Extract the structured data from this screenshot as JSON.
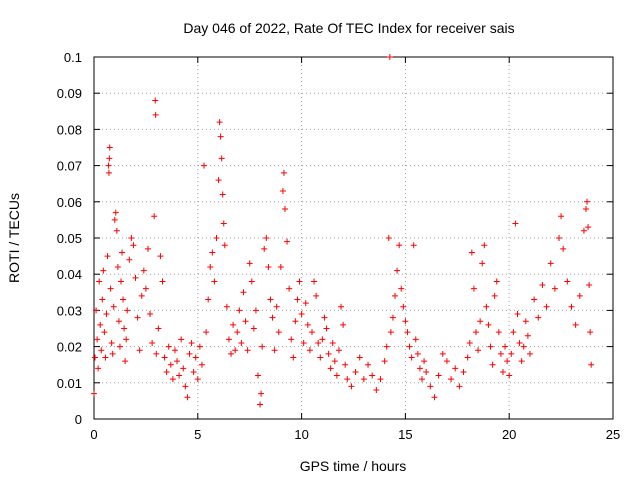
{
  "chart_data": {
    "type": "scatter",
    "title": "Day 046 of 2022, Rate Of TEC Index for receiver sais",
    "xlabel": "GPS time / hours",
    "ylabel": "ROTI / TECUs",
    "xlim": [
      0,
      25
    ],
    "ylim": [
      0,
      0.1
    ],
    "x_ticks": [
      "0",
      "5",
      "10",
      "15",
      "20",
      "25"
    ],
    "y_ticks": [
      "0",
      "0.01",
      "0.02",
      "0.03",
      "0.04",
      "0.05",
      "0.06",
      "0.07",
      "0.08",
      "0.09",
      "0.1"
    ],
    "x_tick_values": [
      0,
      5,
      10,
      15,
      20,
      25
    ],
    "y_tick_values": [
      0,
      0.01,
      0.02,
      0.03,
      0.04,
      0.05,
      0.06,
      0.07,
      0.08,
      0.09,
      0.1
    ],
    "grid": true,
    "marker": "+",
    "marker_color": "#ff0000",
    "series": [
      {
        "points": [
          [
            0.0,
            0.007
          ],
          [
            0.05,
            0.017
          ],
          [
            0.1,
            0.03
          ],
          [
            0.15,
            0.022
          ],
          [
            0.2,
            0.014
          ],
          [
            0.25,
            0.038
          ],
          [
            0.3,
            0.026
          ],
          [
            0.35,
            0.019
          ],
          [
            0.4,
            0.033
          ],
          [
            0.45,
            0.041
          ],
          [
            0.5,
            0.024
          ],
          [
            0.55,
            0.017
          ],
          [
            0.6,
            0.029
          ],
          [
            0.65,
            0.045
          ],
          [
            0.7,
            0.07
          ],
          [
            0.72,
            0.068
          ],
          [
            0.74,
            0.072
          ],
          [
            0.76,
            0.075
          ],
          [
            0.8,
            0.036
          ],
          [
            0.85,
            0.021
          ],
          [
            0.9,
            0.018
          ],
          [
            0.95,
            0.031
          ],
          [
            1.0,
            0.055
          ],
          [
            1.05,
            0.057
          ],
          [
            1.1,
            0.052
          ],
          [
            1.15,
            0.042
          ],
          [
            1.2,
            0.027
          ],
          [
            1.25,
            0.02
          ],
          [
            1.3,
            0.038
          ],
          [
            1.35,
            0.046
          ],
          [
            1.4,
            0.033
          ],
          [
            1.45,
            0.025
          ],
          [
            1.5,
            0.016
          ],
          [
            1.55,
            0.022
          ],
          [
            1.6,
            0.03
          ],
          [
            1.7,
            0.044
          ],
          [
            1.8,
            0.05
          ],
          [
            1.9,
            0.048
          ],
          [
            2.0,
            0.039
          ],
          [
            2.1,
            0.028
          ],
          [
            2.2,
            0.019
          ],
          [
            2.3,
            0.034
          ],
          [
            2.4,
            0.041
          ],
          [
            2.5,
            0.036
          ],
          [
            2.6,
            0.047
          ],
          [
            2.7,
            0.029
          ],
          [
            2.8,
            0.021
          ],
          [
            2.9,
            0.056
          ],
          [
            2.95,
            0.088
          ],
          [
            2.97,
            0.084
          ],
          [
            3.0,
            0.018
          ],
          [
            3.1,
            0.025
          ],
          [
            3.2,
            0.045
          ],
          [
            3.3,
            0.038
          ],
          [
            3.4,
            0.017
          ],
          [
            3.5,
            0.013
          ],
          [
            3.6,
            0.02
          ],
          [
            3.7,
            0.015
          ],
          [
            3.8,
            0.011
          ],
          [
            3.9,
            0.019
          ],
          [
            4.0,
            0.016
          ],
          [
            4.1,
            0.012
          ],
          [
            4.2,
            0.022
          ],
          [
            4.3,
            0.014
          ],
          [
            4.4,
            0.009
          ],
          [
            4.5,
            0.006
          ],
          [
            4.6,
            0.018
          ],
          [
            4.7,
            0.021
          ],
          [
            4.8,
            0.013
          ],
          [
            4.9,
            0.017
          ],
          [
            5.0,
            0.011
          ],
          [
            5.1,
            0.02
          ],
          [
            5.2,
            0.015
          ],
          [
            5.3,
            0.07
          ],
          [
            5.4,
            0.024
          ],
          [
            5.5,
            0.033
          ],
          [
            5.6,
            0.042
          ],
          [
            5.7,
            0.046
          ],
          [
            5.8,
            0.038
          ],
          [
            5.9,
            0.05
          ],
          [
            6.0,
            0.066
          ],
          [
            6.05,
            0.082
          ],
          [
            6.1,
            0.078
          ],
          [
            6.15,
            0.072
          ],
          [
            6.2,
            0.062
          ],
          [
            6.25,
            0.054
          ],
          [
            6.3,
            0.048
          ],
          [
            6.4,
            0.031
          ],
          [
            6.5,
            0.022
          ],
          [
            6.6,
            0.018
          ],
          [
            6.7,
            0.026
          ],
          [
            6.8,
            0.019
          ],
          [
            6.9,
            0.024
          ],
          [
            7.0,
            0.03
          ],
          [
            7.1,
            0.021
          ],
          [
            7.2,
            0.035
          ],
          [
            7.3,
            0.027
          ],
          [
            7.4,
            0.019
          ],
          [
            7.5,
            0.043
          ],
          [
            7.6,
            0.038
          ],
          [
            7.7,
            0.025
          ],
          [
            7.8,
            0.03
          ],
          [
            7.9,
            0.012
          ],
          [
            8.0,
            0.004
          ],
          [
            8.05,
            0.007
          ],
          [
            8.1,
            0.02
          ],
          [
            8.2,
            0.047
          ],
          [
            8.3,
            0.05
          ],
          [
            8.4,
            0.042
          ],
          [
            8.5,
            0.033
          ],
          [
            8.6,
            0.028
          ],
          [
            8.7,
            0.019
          ],
          [
            8.8,
            0.031
          ],
          [
            8.9,
            0.024
          ],
          [
            9.0,
            0.042
          ],
          [
            9.1,
            0.063
          ],
          [
            9.15,
            0.068
          ],
          [
            9.2,
            0.058
          ],
          [
            9.3,
            0.049
          ],
          [
            9.4,
            0.036
          ],
          [
            9.5,
            0.022
          ],
          [
            9.6,
            0.017
          ],
          [
            9.7,
            0.027
          ],
          [
            9.8,
            0.033
          ],
          [
            9.9,
            0.038
          ],
          [
            10.0,
            0.029
          ],
          [
            10.1,
            0.021
          ],
          [
            10.2,
            0.032
          ],
          [
            10.3,
            0.026
          ],
          [
            10.4,
            0.019
          ],
          [
            10.5,
            0.024
          ],
          [
            10.6,
            0.038
          ],
          [
            10.7,
            0.034
          ],
          [
            10.8,
            0.021
          ],
          [
            10.9,
            0.017
          ],
          [
            11.0,
            0.022
          ],
          [
            11.1,
            0.028
          ],
          [
            11.2,
            0.025
          ],
          [
            11.3,
            0.018
          ],
          [
            11.4,
            0.014
          ],
          [
            11.5,
            0.021
          ],
          [
            11.6,
            0.016
          ],
          [
            11.7,
            0.012
          ],
          [
            11.8,
            0.019
          ],
          [
            11.9,
            0.031
          ],
          [
            12.0,
            0.026
          ],
          [
            12.1,
            0.015
          ],
          [
            12.2,
            0.011
          ],
          [
            12.4,
            0.009
          ],
          [
            12.6,
            0.013
          ],
          [
            12.8,
            0.017
          ],
          [
            13.0,
            0.011
          ],
          [
            13.2,
            0.015
          ],
          [
            13.4,
            0.012
          ],
          [
            13.6,
            0.008
          ],
          [
            13.8,
            0.011
          ],
          [
            14.0,
            0.016
          ],
          [
            14.1,
            0.02
          ],
          [
            14.2,
            0.05
          ],
          [
            14.25,
            0.1
          ],
          [
            14.3,
            0.024
          ],
          [
            14.4,
            0.028
          ],
          [
            14.5,
            0.034
          ],
          [
            14.6,
            0.041
          ],
          [
            14.7,
            0.048
          ],
          [
            14.8,
            0.036
          ],
          [
            14.9,
            0.031
          ],
          [
            15.0,
            0.027
          ],
          [
            15.1,
            0.024
          ],
          [
            15.2,
            0.02
          ],
          [
            15.3,
            0.017
          ],
          [
            15.4,
            0.048
          ],
          [
            15.5,
            0.022
          ],
          [
            15.6,
            0.018
          ],
          [
            15.7,
            0.014
          ],
          [
            15.8,
            0.011
          ],
          [
            15.9,
            0.016
          ],
          [
            16.0,
            0.013
          ],
          [
            16.2,
            0.009
          ],
          [
            16.4,
            0.006
          ],
          [
            16.6,
            0.012
          ],
          [
            16.8,
            0.018
          ],
          [
            17.0,
            0.016
          ],
          [
            17.2,
            0.011
          ],
          [
            17.4,
            0.014
          ],
          [
            17.6,
            0.009
          ],
          [
            17.8,
            0.013
          ],
          [
            18.0,
            0.017
          ],
          [
            18.1,
            0.021
          ],
          [
            18.2,
            0.046
          ],
          [
            18.3,
            0.036
          ],
          [
            18.4,
            0.024
          ],
          [
            18.5,
            0.019
          ],
          [
            18.6,
            0.027
          ],
          [
            18.7,
            0.043
          ],
          [
            18.8,
            0.048
          ],
          [
            18.9,
            0.031
          ],
          [
            19.0,
            0.026
          ],
          [
            19.1,
            0.02
          ],
          [
            19.2,
            0.015
          ],
          [
            19.3,
            0.034
          ],
          [
            19.4,
            0.038
          ],
          [
            19.5,
            0.024
          ],
          [
            19.6,
            0.018
          ],
          [
            19.7,
            0.013
          ],
          [
            19.8,
            0.02
          ],
          [
            19.9,
            0.016
          ],
          [
            20.0,
            0.012
          ],
          [
            20.1,
            0.018
          ],
          [
            20.2,
            0.024
          ],
          [
            20.3,
            0.054
          ],
          [
            20.4,
            0.029
          ],
          [
            20.5,
            0.021
          ],
          [
            20.6,
            0.016
          ],
          [
            20.7,
            0.02
          ],
          [
            20.8,
            0.027
          ],
          [
            20.9,
            0.023
          ],
          [
            21.0,
            0.018
          ],
          [
            21.2,
            0.033
          ],
          [
            21.4,
            0.028
          ],
          [
            21.6,
            0.037
          ],
          [
            21.8,
            0.031
          ],
          [
            22.0,
            0.043
          ],
          [
            22.2,
            0.036
          ],
          [
            22.4,
            0.05
          ],
          [
            22.5,
            0.056
          ],
          [
            22.6,
            0.047
          ],
          [
            22.8,
            0.038
          ],
          [
            23.0,
            0.031
          ],
          [
            23.2,
            0.026
          ],
          [
            23.4,
            0.034
          ],
          [
            23.6,
            0.052
          ],
          [
            23.7,
            0.058
          ],
          [
            23.75,
            0.06
          ],
          [
            23.8,
            0.053
          ],
          [
            23.85,
            0.037
          ],
          [
            23.9,
            0.024
          ],
          [
            23.95,
            0.015
          ]
        ]
      }
    ]
  }
}
